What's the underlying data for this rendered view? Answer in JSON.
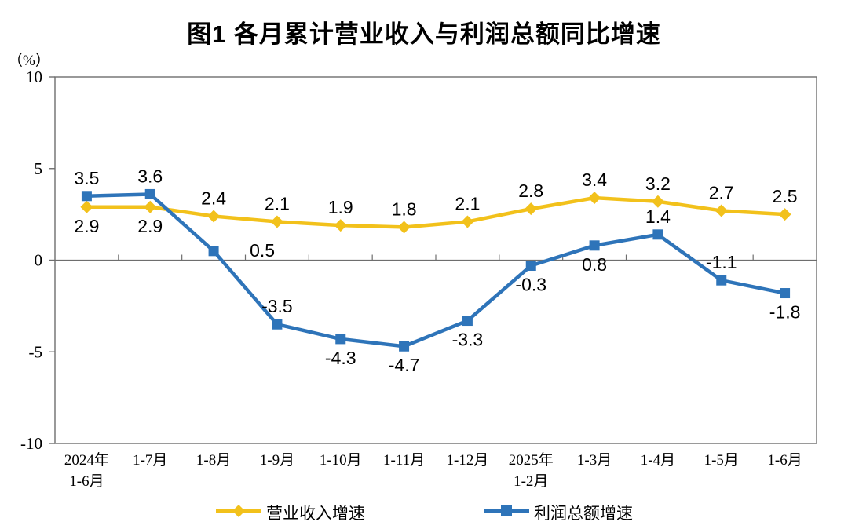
{
  "page": {
    "title": "图1  各月累计营业收入与利润总额同比增速",
    "unit_label": "（%）"
  },
  "chart_data": {
    "type": "line",
    "categories": [
      [
        "2024年",
        "1-6月"
      ],
      [
        "1-7月"
      ],
      [
        "1-8月"
      ],
      [
        "1-9月"
      ],
      [
        "1-10月"
      ],
      [
        "1-11月"
      ],
      [
        "1-12月"
      ],
      [
        "2025年",
        "1-2月"
      ],
      [
        "1-3月"
      ],
      [
        "1-4月"
      ],
      [
        "1-5月"
      ],
      [
        "1-6月"
      ]
    ],
    "series": [
      {
        "name": "营业收入增速",
        "color": "#F2C11B",
        "marker": "diamond",
        "values": [
          2.9,
          2.9,
          2.4,
          2.1,
          1.9,
          1.8,
          2.1,
          2.8,
          3.4,
          3.2,
          2.7,
          2.5
        ],
        "label_pos": [
          "below",
          "below",
          "above",
          "above",
          "above",
          "above",
          "above",
          "above",
          "above",
          "above",
          "above",
          "above"
        ]
      },
      {
        "name": "利润总额增速",
        "color": "#2E74B9",
        "marker": "square",
        "values": [
          3.5,
          3.6,
          0.5,
          -3.5,
          -4.3,
          -4.7,
          -3.3,
          -0.3,
          0.8,
          1.4,
          -1.1,
          -1.8
        ],
        "label_pos": [
          "above",
          "above",
          "right",
          "above",
          "below",
          "below",
          "below",
          "below",
          "below",
          "above",
          "above",
          "below"
        ]
      }
    ],
    "ylabel": "（%）",
    "ylim": [
      -10,
      10
    ],
    "yticks": [
      10,
      5,
      0,
      -5,
      -10
    ],
    "zero_line": true,
    "grid": false,
    "legend_position": "bottom"
  },
  "colors": {
    "axis": "#6E6E6E",
    "text": "#000000",
    "background": "#FFFFFF"
  }
}
